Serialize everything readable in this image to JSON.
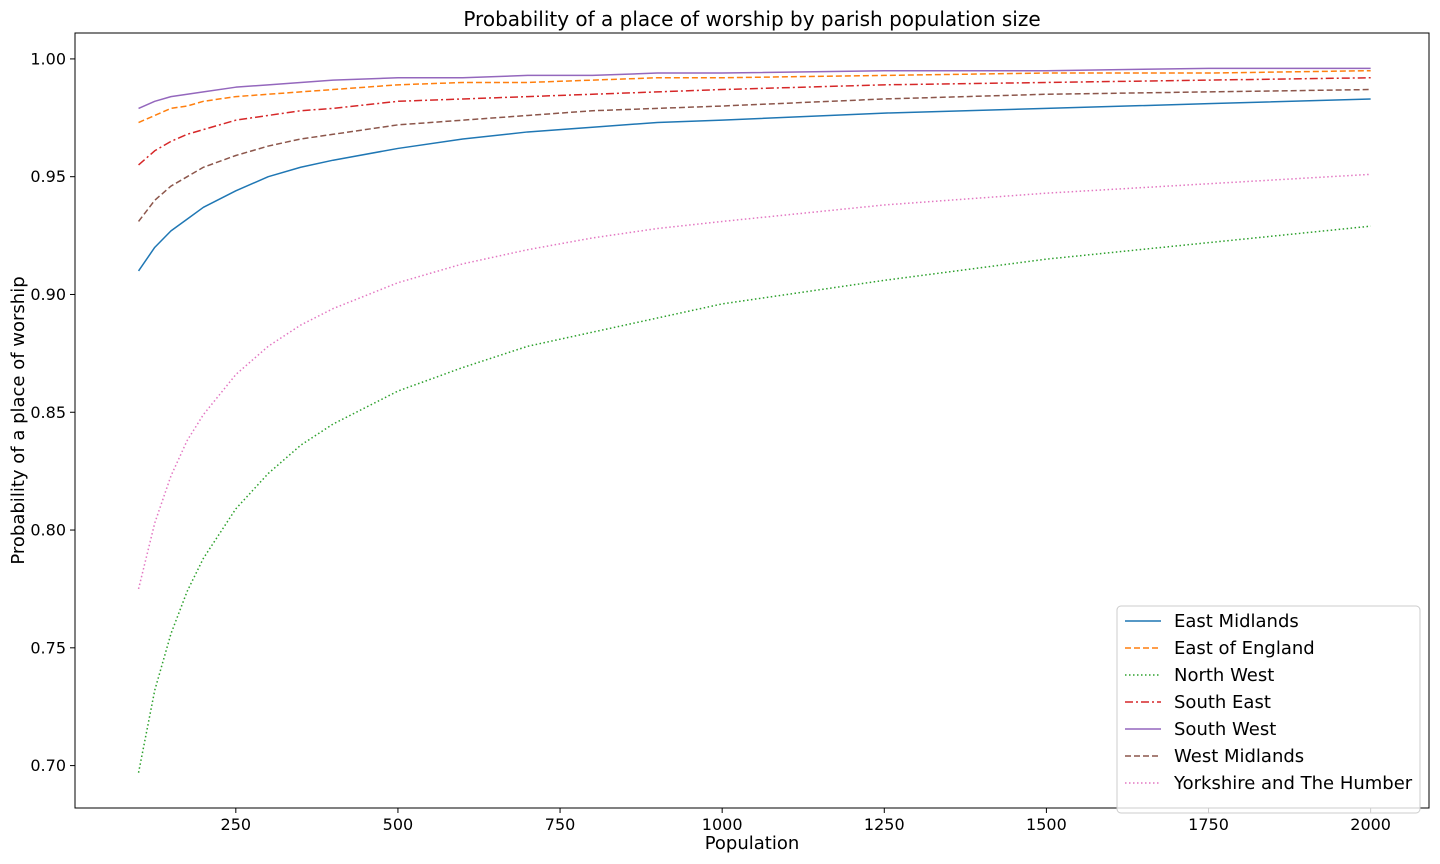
{
  "chart_data": {
    "type": "line",
    "title": "Probability of a place of worship by parish population size",
    "xlabel": "Population",
    "ylabel": "Probability of a place of worship",
    "xlim": [
      2,
      2090
    ],
    "ylim": [
      0.682,
      1.011
    ],
    "xticks": [
      250,
      500,
      750,
      1000,
      1250,
      1500,
      1750,
      2000
    ],
    "xtick_labels": [
      "250",
      "500",
      "750",
      "1000",
      "1250",
      "1500",
      "1750",
      "2000"
    ],
    "yticks": [
      0.7,
      0.75,
      0.8,
      0.85,
      0.9,
      0.95,
      1.0
    ],
    "ytick_labels": [
      "0.70",
      "0.75",
      "0.80",
      "0.85",
      "0.90",
      "0.95",
      "1.00"
    ],
    "grid": false,
    "legend_position": "lower-right",
    "x": [
      100,
      125,
      150,
      175,
      200,
      250,
      300,
      350,
      400,
      500,
      600,
      700,
      800,
      900,
      1000,
      1250,
      1500,
      1750,
      2000
    ],
    "series": [
      {
        "name": "East Midlands",
        "color": "#1f77b4",
        "dash": "solid",
        "values": [
          0.91,
          0.92,
          0.927,
          0.932,
          0.937,
          0.944,
          0.95,
          0.954,
          0.957,
          0.962,
          0.966,
          0.969,
          0.971,
          0.973,
          0.974,
          0.977,
          0.979,
          0.981,
          0.983
        ]
      },
      {
        "name": "East of England",
        "color": "#ff7f0e",
        "dash": "dashed",
        "values": [
          0.973,
          0.976,
          0.979,
          0.98,
          0.982,
          0.984,
          0.985,
          0.986,
          0.987,
          0.989,
          0.99,
          0.99,
          0.991,
          0.992,
          0.992,
          0.993,
          0.994,
          0.994,
          0.995
        ]
      },
      {
        "name": "North West",
        "color": "#2ca02c",
        "dash": "dotted",
        "values": [
          0.697,
          0.732,
          0.756,
          0.774,
          0.788,
          0.809,
          0.824,
          0.836,
          0.845,
          0.859,
          0.869,
          0.878,
          0.884,
          0.89,
          0.896,
          0.906,
          0.915,
          0.922,
          0.929
        ]
      },
      {
        "name": "South East",
        "color": "#d62728",
        "dash": "dashdot",
        "values": [
          0.955,
          0.961,
          0.965,
          0.968,
          0.97,
          0.974,
          0.976,
          0.978,
          0.979,
          0.982,
          0.983,
          0.984,
          0.985,
          0.986,
          0.987,
          0.989,
          0.99,
          0.991,
          0.992
        ]
      },
      {
        "name": "South West",
        "color": "#9467bd",
        "dash": "solid",
        "values": [
          0.979,
          0.982,
          0.984,
          0.985,
          0.986,
          0.988,
          0.989,
          0.99,
          0.991,
          0.992,
          0.992,
          0.993,
          0.993,
          0.994,
          0.994,
          0.995,
          0.995,
          0.996,
          0.996
        ]
      },
      {
        "name": "West Midlands",
        "color": "#8c564b",
        "dash": "dashed",
        "values": [
          0.931,
          0.94,
          0.946,
          0.95,
          0.954,
          0.959,
          0.963,
          0.966,
          0.968,
          0.972,
          0.974,
          0.976,
          0.978,
          0.979,
          0.98,
          0.983,
          0.985,
          0.986,
          0.987
        ]
      },
      {
        "name": "Yorkshire and The Humber",
        "color": "#e377c2",
        "dash": "dotted",
        "values": [
          0.775,
          0.803,
          0.823,
          0.838,
          0.849,
          0.866,
          0.878,
          0.887,
          0.894,
          0.905,
          0.913,
          0.919,
          0.924,
          0.928,
          0.931,
          0.938,
          0.943,
          0.947,
          0.951
        ]
      }
    ]
  }
}
